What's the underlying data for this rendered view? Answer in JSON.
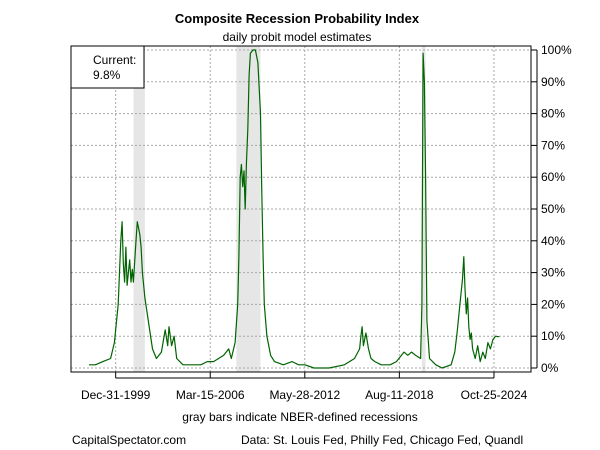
{
  "chart_data": {
    "type": "line",
    "title": "Composite Recession Probability Index",
    "subtitle": "daily probit model estimates",
    "xlabel": "gray bars indicate NBER-defined recessions",
    "ylabel": "",
    "x_tick_labels": [
      "Dec-31-1999",
      "Mar-15-2006",
      "May-28-2012",
      "Aug-11-2018",
      "Oct-25-2024"
    ],
    "x_ticks": [
      "1999-12-31",
      "2006-03-15",
      "2012-05-28",
      "2018-08-11",
      "2024-10-25"
    ],
    "xlim": [
      "1998-04-01",
      "2025-12-31"
    ],
    "y_tick_labels": [
      "0%",
      "10%",
      "20%",
      "30%",
      "40%",
      "50%",
      "60%",
      "70%",
      "80%",
      "90%",
      "100%"
    ],
    "ylim": [
      0,
      100
    ],
    "y_unit": "%",
    "grid": true,
    "line_color": "#006400",
    "recession_band_color": "#e6e6e6",
    "recession_bands": [
      {
        "start": "2001-03-01",
        "end": "2001-11-30"
      },
      {
        "start": "2007-12-01",
        "end": "2009-06-30"
      },
      {
        "start": "2020-02-01",
        "end": "2020-04-30"
      }
    ],
    "current_box": {
      "label": "Current:",
      "value": "9.8%"
    },
    "footer_left": "CapitalSpectator.com",
    "footer_right": "Data: St. Louis Fed, Philly Fed, Chicago Fed, Quandl",
    "series": [
      {
        "points": [
          [
            "1998-04-01",
            1
          ],
          [
            "1998-09-01",
            1
          ],
          [
            "1999-03-01",
            2
          ],
          [
            "1999-09-01",
            3
          ],
          [
            "1999-12-01",
            8
          ],
          [
            "2000-03-01",
            20
          ],
          [
            "2000-05-01",
            40
          ],
          [
            "2000-06-01",
            46
          ],
          [
            "2000-07-01",
            33
          ],
          [
            "2000-08-01",
            27
          ],
          [
            "2000-09-01",
            38
          ],
          [
            "2000-10-01",
            26
          ],
          [
            "2000-11-01",
            30
          ],
          [
            "2000-12-01",
            34
          ],
          [
            "2001-01-01",
            27
          ],
          [
            "2001-02-01",
            31
          ],
          [
            "2001-03-01",
            27
          ],
          [
            "2001-05-01",
            40
          ],
          [
            "2001-06-01",
            46
          ],
          [
            "2001-08-01",
            42
          ],
          [
            "2001-09-01",
            38
          ],
          [
            "2001-10-01",
            30
          ],
          [
            "2001-12-01",
            22
          ],
          [
            "2002-03-01",
            14
          ],
          [
            "2002-06-01",
            6
          ],
          [
            "2002-09-01",
            3
          ],
          [
            "2003-01-01",
            5
          ],
          [
            "2003-04-01",
            12
          ],
          [
            "2003-06-01",
            7
          ],
          [
            "2003-07-01",
            13
          ],
          [
            "2003-09-01",
            7
          ],
          [
            "2003-11-01",
            10
          ],
          [
            "2004-01-01",
            3
          ],
          [
            "2004-06-01",
            1
          ],
          [
            "2005-01-01",
            1
          ],
          [
            "2005-08-01",
            1
          ],
          [
            "2006-01-01",
            2
          ],
          [
            "2006-06-01",
            2
          ],
          [
            "2006-10-01",
            3
          ],
          [
            "2007-02-01",
            4
          ],
          [
            "2007-06-01",
            6
          ],
          [
            "2007-08-01",
            3
          ],
          [
            "2007-11-01",
            8
          ],
          [
            "2008-01-01",
            20
          ],
          [
            "2008-02-01",
            35
          ],
          [
            "2008-03-01",
            60
          ],
          [
            "2008-04-01",
            64
          ],
          [
            "2008-05-01",
            57
          ],
          [
            "2008-06-01",
            62
          ],
          [
            "2008-07-01",
            50
          ],
          [
            "2008-08-01",
            65
          ],
          [
            "2008-09-01",
            75
          ],
          [
            "2008-10-01",
            92
          ],
          [
            "2008-11-01",
            99
          ],
          [
            "2009-01-01",
            100
          ],
          [
            "2009-03-01",
            100
          ],
          [
            "2009-05-01",
            96
          ],
          [
            "2009-07-01",
            80
          ],
          [
            "2009-08-01",
            55
          ],
          [
            "2009-09-01",
            35
          ],
          [
            "2009-10-01",
            20
          ],
          [
            "2009-12-01",
            10
          ],
          [
            "2010-03-01",
            4
          ],
          [
            "2010-06-01",
            2
          ],
          [
            "2011-01-01",
            1
          ],
          [
            "2011-08-01",
            2
          ],
          [
            "2012-01-01",
            1
          ],
          [
            "2012-06-01",
            1
          ],
          [
            "2013-01-01",
            0
          ],
          [
            "2014-01-01",
            0
          ],
          [
            "2015-01-01",
            1
          ],
          [
            "2015-09-01",
            3
          ],
          [
            "2016-01-01",
            6
          ],
          [
            "2016-02-01",
            10
          ],
          [
            "2016-03-01",
            13
          ],
          [
            "2016-04-01",
            7
          ],
          [
            "2016-06-01",
            11
          ],
          [
            "2016-08-01",
            6
          ],
          [
            "2016-10-01",
            3
          ],
          [
            "2017-01-01",
            2
          ],
          [
            "2017-06-01",
            1
          ],
          [
            "2018-01-01",
            1
          ],
          [
            "2018-06-01",
            2
          ],
          [
            "2018-12-01",
            5
          ],
          [
            "2019-03-01",
            4
          ],
          [
            "2019-06-01",
            5
          ],
          [
            "2019-09-01",
            4
          ],
          [
            "2020-01-01",
            3
          ],
          [
            "2020-02-01",
            20
          ],
          [
            "2020-03-01",
            99
          ],
          [
            "2020-04-01",
            90
          ],
          [
            "2020-05-01",
            60
          ],
          [
            "2020-06-01",
            15
          ],
          [
            "2020-08-01",
            3
          ],
          [
            "2021-01-01",
            1
          ],
          [
            "2021-06-01",
            0
          ],
          [
            "2022-01-01",
            1
          ],
          [
            "2022-04-01",
            5
          ],
          [
            "2022-06-01",
            12
          ],
          [
            "2022-08-01",
            20
          ],
          [
            "2022-10-01",
            28
          ],
          [
            "2022-11-01",
            35
          ],
          [
            "2022-12-01",
            25
          ],
          [
            "2023-01-01",
            17
          ],
          [
            "2023-02-01",
            22
          ],
          [
            "2023-03-01",
            13
          ],
          [
            "2023-04-01",
            9
          ],
          [
            "2023-05-01",
            11
          ],
          [
            "2023-06-01",
            6
          ],
          [
            "2023-08-01",
            3
          ],
          [
            "2023-10-01",
            7
          ],
          [
            "2023-12-01",
            2
          ],
          [
            "2024-02-01",
            5
          ],
          [
            "2024-04-01",
            3
          ],
          [
            "2024-06-01",
            8
          ],
          [
            "2024-08-01",
            6
          ],
          [
            "2024-10-01",
            9
          ],
          [
            "2024-12-01",
            10
          ],
          [
            "2025-03-01",
            9.8
          ]
        ]
      }
    ]
  }
}
